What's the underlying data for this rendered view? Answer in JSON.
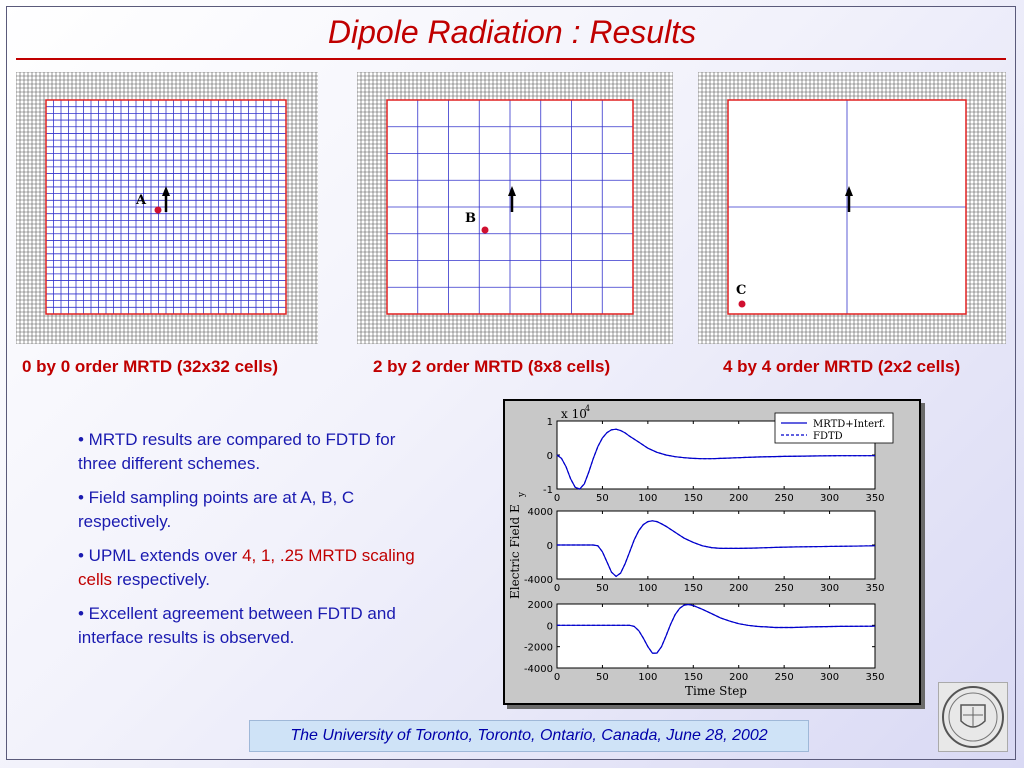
{
  "slide": {
    "title": "Dipole Radiation : Results",
    "footer": "The University of Toronto, Toronto, Ontario, Canada, June 28, 2002"
  },
  "panels": [
    {
      "caption": "0 by 0 order MRTD (32x32 cells)",
      "cells": 32,
      "point_label": "A"
    },
    {
      "caption": "2 by 2 order MRTD (8x8 cells)",
      "cells": 8,
      "point_label": "B"
    },
    {
      "caption": "4 by 4 order MRTD (2x2 cells)",
      "cells": 2,
      "point_label": "C"
    }
  ],
  "bullets": [
    {
      "text": "• MRTD results are compared to FDTD for three different schemes."
    },
    {
      "text": "• Field sampling points are at A, B, C respectively."
    },
    {
      "pre": "• UPML extends over ",
      "highlight": "4, 1, .25 MRTD scaling cells",
      "post": " respectively."
    },
    {
      "text": "• Excellent agreement between FDTD and interface results is observed."
    }
  ],
  "colors": {
    "title": "#c00000",
    "bullet_text": "#1a1ab0",
    "highlight": "#c00000",
    "mesh_line": "#3333cc",
    "boundary": "#e02020",
    "pml_grid": "#555555",
    "point": "#d01030",
    "series_mrtd": "#0000cc",
    "series_fdtd": "#0000cc"
  },
  "chart_data": {
    "type": "line",
    "ylabel": "Electric Field E",
    "ylabel_sub": "y",
    "xlabel": "Time Step",
    "exponent_label": "x 10",
    "exponent_power": "4",
    "legend": {
      "placement": "top-right",
      "entries": [
        "MRTD+Interf.",
        "FDTD"
      ]
    },
    "subplots": [
      {
        "xlim": [
          0,
          350
        ],
        "ylim": [
          -1,
          1
        ],
        "xticks": [
          "0",
          "50",
          "100",
          "150",
          "200",
          "250",
          "300",
          "350"
        ],
        "yticks": [
          "1",
          "0",
          "-1"
        ],
        "x": [
          0,
          5,
          10,
          15,
          20,
          25,
          30,
          35,
          40,
          45,
          50,
          55,
          60,
          65,
          70,
          75,
          80,
          90,
          100,
          110,
          120,
          130,
          140,
          150,
          160,
          170,
          180,
          200,
          220,
          250,
          280,
          310,
          350
        ],
        "series": [
          {
            "name": "MRTD+Interf.",
            "values": [
              0,
              -0.1,
              -0.35,
              -0.7,
              -0.95,
              -1.0,
              -0.85,
              -0.5,
              -0.1,
              0.25,
              0.5,
              0.66,
              0.74,
              0.76,
              0.72,
              0.65,
              0.55,
              0.38,
              0.2,
              0.08,
              0.0,
              -0.05,
              -0.08,
              -0.1,
              -0.11,
              -0.11,
              -0.1,
              -0.08,
              -0.06,
              -0.04,
              -0.03,
              -0.02,
              -0.02
            ]
          },
          {
            "name": "FDTD",
            "values": [
              0,
              -0.1,
              -0.35,
              -0.7,
              -0.95,
              -1.0,
              -0.85,
              -0.5,
              -0.1,
              0.25,
              0.5,
              0.66,
              0.74,
              0.76,
              0.72,
              0.65,
              0.55,
              0.38,
              0.2,
              0.08,
              0.0,
              -0.05,
              -0.08,
              -0.1,
              -0.11,
              -0.11,
              -0.1,
              -0.08,
              -0.06,
              -0.04,
              -0.03,
              -0.02,
              -0.02
            ]
          }
        ]
      },
      {
        "xlim": [
          0,
          350
        ],
        "ylim": [
          -4000,
          4000
        ],
        "xticks": [
          "0",
          "50",
          "100",
          "150",
          "200",
          "250",
          "300",
          "350"
        ],
        "yticks": [
          "4000",
          "0",
          "-4000"
        ],
        "x": [
          0,
          20,
          40,
          45,
          50,
          55,
          60,
          65,
          70,
          75,
          80,
          85,
          90,
          95,
          100,
          105,
          110,
          115,
          120,
          130,
          140,
          150,
          160,
          170,
          180,
          200,
          220,
          250,
          280,
          310,
          350
        ],
        "series": [
          {
            "name": "MRTD+Interf.",
            "values": [
              0,
              0,
              0,
              -100,
              -800,
              -2000,
              -3200,
              -3700,
              -3300,
              -2200,
              -800,
              600,
              1700,
              2400,
              2750,
              2850,
              2750,
              2500,
              2200,
              1500,
              800,
              300,
              -100,
              -300,
              -400,
              -400,
              -350,
              -250,
              -200,
              -150,
              -100
            ]
          },
          {
            "name": "FDTD",
            "values": [
              0,
              0,
              0,
              -100,
              -800,
              -2000,
              -3200,
              -3700,
              -3300,
              -2200,
              -800,
              600,
              1700,
              2400,
              2750,
              2850,
              2750,
              2500,
              2200,
              1500,
              800,
              300,
              -100,
              -300,
              -400,
              -400,
              -350,
              -250,
              -200,
              -150,
              -100
            ]
          }
        ]
      },
      {
        "xlim": [
          0,
          350
        ],
        "ylim": [
          -4000,
          2000
        ],
        "xticks": [
          "0",
          "50",
          "100",
          "150",
          "200",
          "250",
          "300",
          "350"
        ],
        "yticks": [
          "2000",
          "0",
          "-2000",
          "-4000"
        ],
        "x": [
          0,
          40,
          80,
          85,
          90,
          95,
          100,
          105,
          110,
          115,
          120,
          125,
          130,
          135,
          140,
          145,
          150,
          160,
          170,
          180,
          190,
          200,
          210,
          220,
          230,
          240,
          260,
          280,
          310,
          350
        ],
        "series": [
          {
            "name": "MRTD+Interf.",
            "values": [
              0,
              0,
              0,
              -100,
              -500,
              -1200,
              -2000,
              -2600,
              -2600,
              -2000,
              -1000,
              100,
              1000,
              1600,
              1900,
              1950,
              1850,
              1500,
              1100,
              700,
              400,
              150,
              0,
              -100,
              -150,
              -200,
              -200,
              -150,
              -100,
              -80
            ]
          },
          {
            "name": "FDTD",
            "values": [
              0,
              0,
              0,
              -100,
              -500,
              -1200,
              -2000,
              -2600,
              -2600,
              -2000,
              -1000,
              100,
              1000,
              1600,
              1900,
              1950,
              1850,
              1500,
              1100,
              700,
              400,
              150,
              0,
              -100,
              -150,
              -200,
              -200,
              -150,
              -100,
              -80
            ]
          }
        ]
      }
    ]
  }
}
